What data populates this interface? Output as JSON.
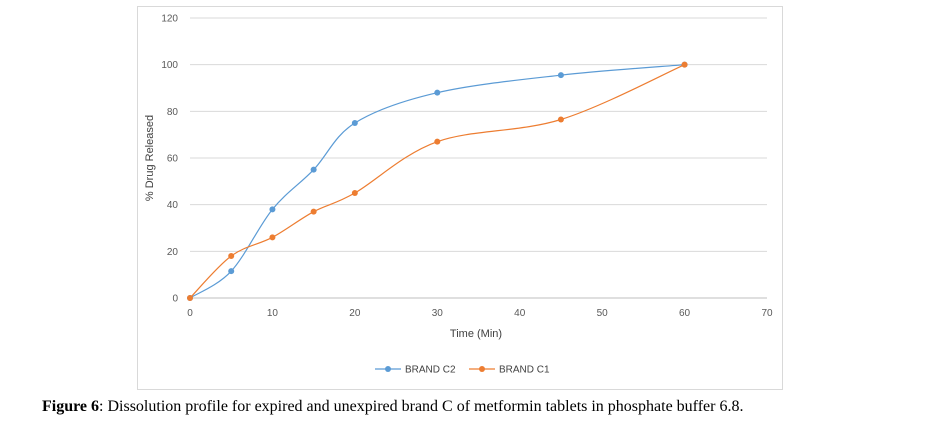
{
  "chart_data": {
    "type": "line",
    "smooth": true,
    "xlabel": "Time (Min)",
    "ylabel": "% Drug Released",
    "xlim": [
      0,
      70
    ],
    "ylim": [
      0,
      120
    ],
    "xticks": [
      0,
      10,
      20,
      30,
      40,
      50,
      60,
      70
    ],
    "yticks": [
      0,
      20,
      40,
      60,
      80,
      100,
      120
    ],
    "grid": "horizontal",
    "legend_position": "bottom",
    "series": [
      {
        "name": "BRAND C2",
        "color": "#5b9bd5",
        "x": [
          0,
          5,
          10,
          15,
          20,
          30,
          45,
          60
        ],
        "y": [
          0,
          11.5,
          38,
          55,
          75,
          88,
          95.5,
          100
        ]
      },
      {
        "name": "BRAND C1",
        "color": "#ed7d31",
        "x": [
          0,
          5,
          10,
          15,
          20,
          30,
          45,
          60
        ],
        "y": [
          0,
          18,
          26,
          37,
          45,
          67,
          76.5,
          100
        ]
      }
    ]
  },
  "caption": {
    "label": "Figure 6",
    "text": ": Dissolution profile for expired and unexpired brand C of metformin tablets in phosphate buffer 6.8."
  }
}
